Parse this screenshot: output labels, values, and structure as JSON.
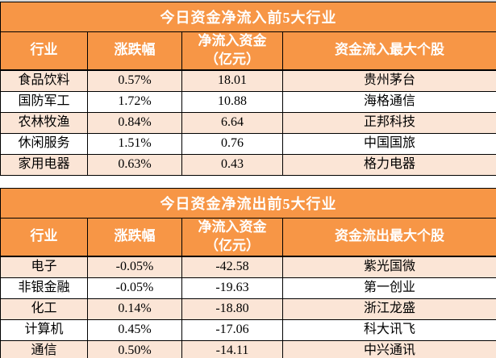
{
  "colors": {
    "header_bg": "#f79646",
    "row_alt_bg": "#fbe5d6",
    "row_bg": "#ffffff",
    "border": "#000000",
    "header_text": "#ffffff",
    "body_text": "#000000",
    "top_strip": "#d9d9d9"
  },
  "chart_data": [
    {
      "type": "table",
      "title": "今日资金净流入前5大行业",
      "columns": [
        "行业",
        "涨跌幅",
        "净流入资金\n（亿元）",
        "资金流入最大个股"
      ],
      "rows": [
        [
          "食品饮料",
          "0.57%",
          "18.01",
          "贵州茅台"
        ],
        [
          "国防军工",
          "1.72%",
          "10.88",
          "海格通信"
        ],
        [
          "农林牧渔",
          "0.84%",
          "6.64",
          "正邦科技"
        ],
        [
          "休闲服务",
          "1.51%",
          "0.76",
          "中国国旅"
        ],
        [
          "家用电器",
          "0.63%",
          "0.43",
          "格力电器"
        ]
      ]
    },
    {
      "type": "table",
      "title": "今日资金净流出前5大行业",
      "columns": [
        "行业",
        "涨跌幅",
        "净流入资金\n（亿元）",
        "资金流出最大个股"
      ],
      "rows": [
        [
          "电子",
          "-0.05%",
          "-42.58",
          "紫光国微"
        ],
        [
          "非银金融",
          "-0.05%",
          "-19.63",
          "第一创业"
        ],
        [
          "化工",
          "0.14%",
          "-18.80",
          "浙江龙盛"
        ],
        [
          "计算机",
          "0.45%",
          "-17.06",
          "科大讯飞"
        ],
        [
          "通信",
          "0.50%",
          "-14.11",
          "中兴通讯"
        ]
      ]
    }
  ]
}
